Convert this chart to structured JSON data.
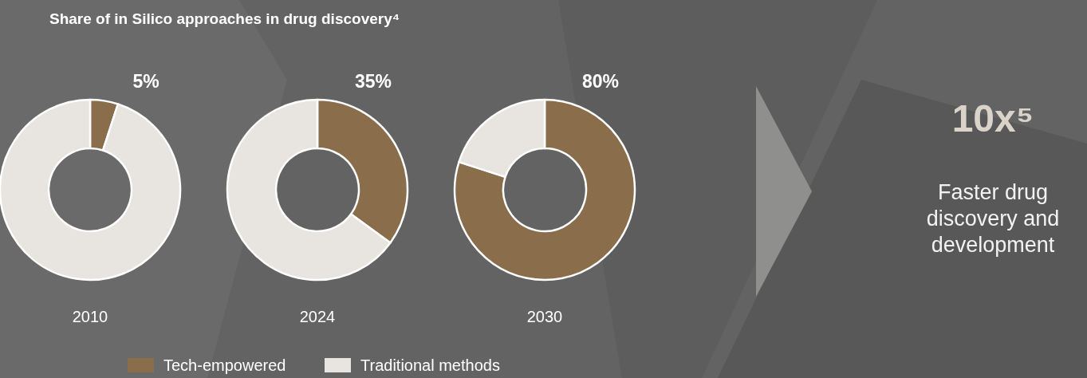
{
  "chart_data": [
    {
      "type": "donut",
      "title": "Share of in Silico approaches in drug discovery⁴",
      "categories": [
        "Tech-empowered",
        "Traditional methods"
      ],
      "colors": [
        "#8a6d4b",
        "#e8e4df"
      ],
      "legend": "bottom",
      "series": [
        {
          "name": "2010",
          "values": [
            5,
            95
          ],
          "value_labels": [
            "5%",
            null
          ]
        },
        {
          "name": "2024",
          "values": [
            35,
            65
          ],
          "value_labels": [
            "35%",
            null
          ]
        },
        {
          "name": "2030",
          "values": [
            80,
            20
          ],
          "value_labels": [
            "80%",
            null
          ]
        }
      ]
    },
    {
      "type": "other",
      "title": "10x⁵",
      "subtitle": "Faster drug discovery and development"
    }
  ]
}
